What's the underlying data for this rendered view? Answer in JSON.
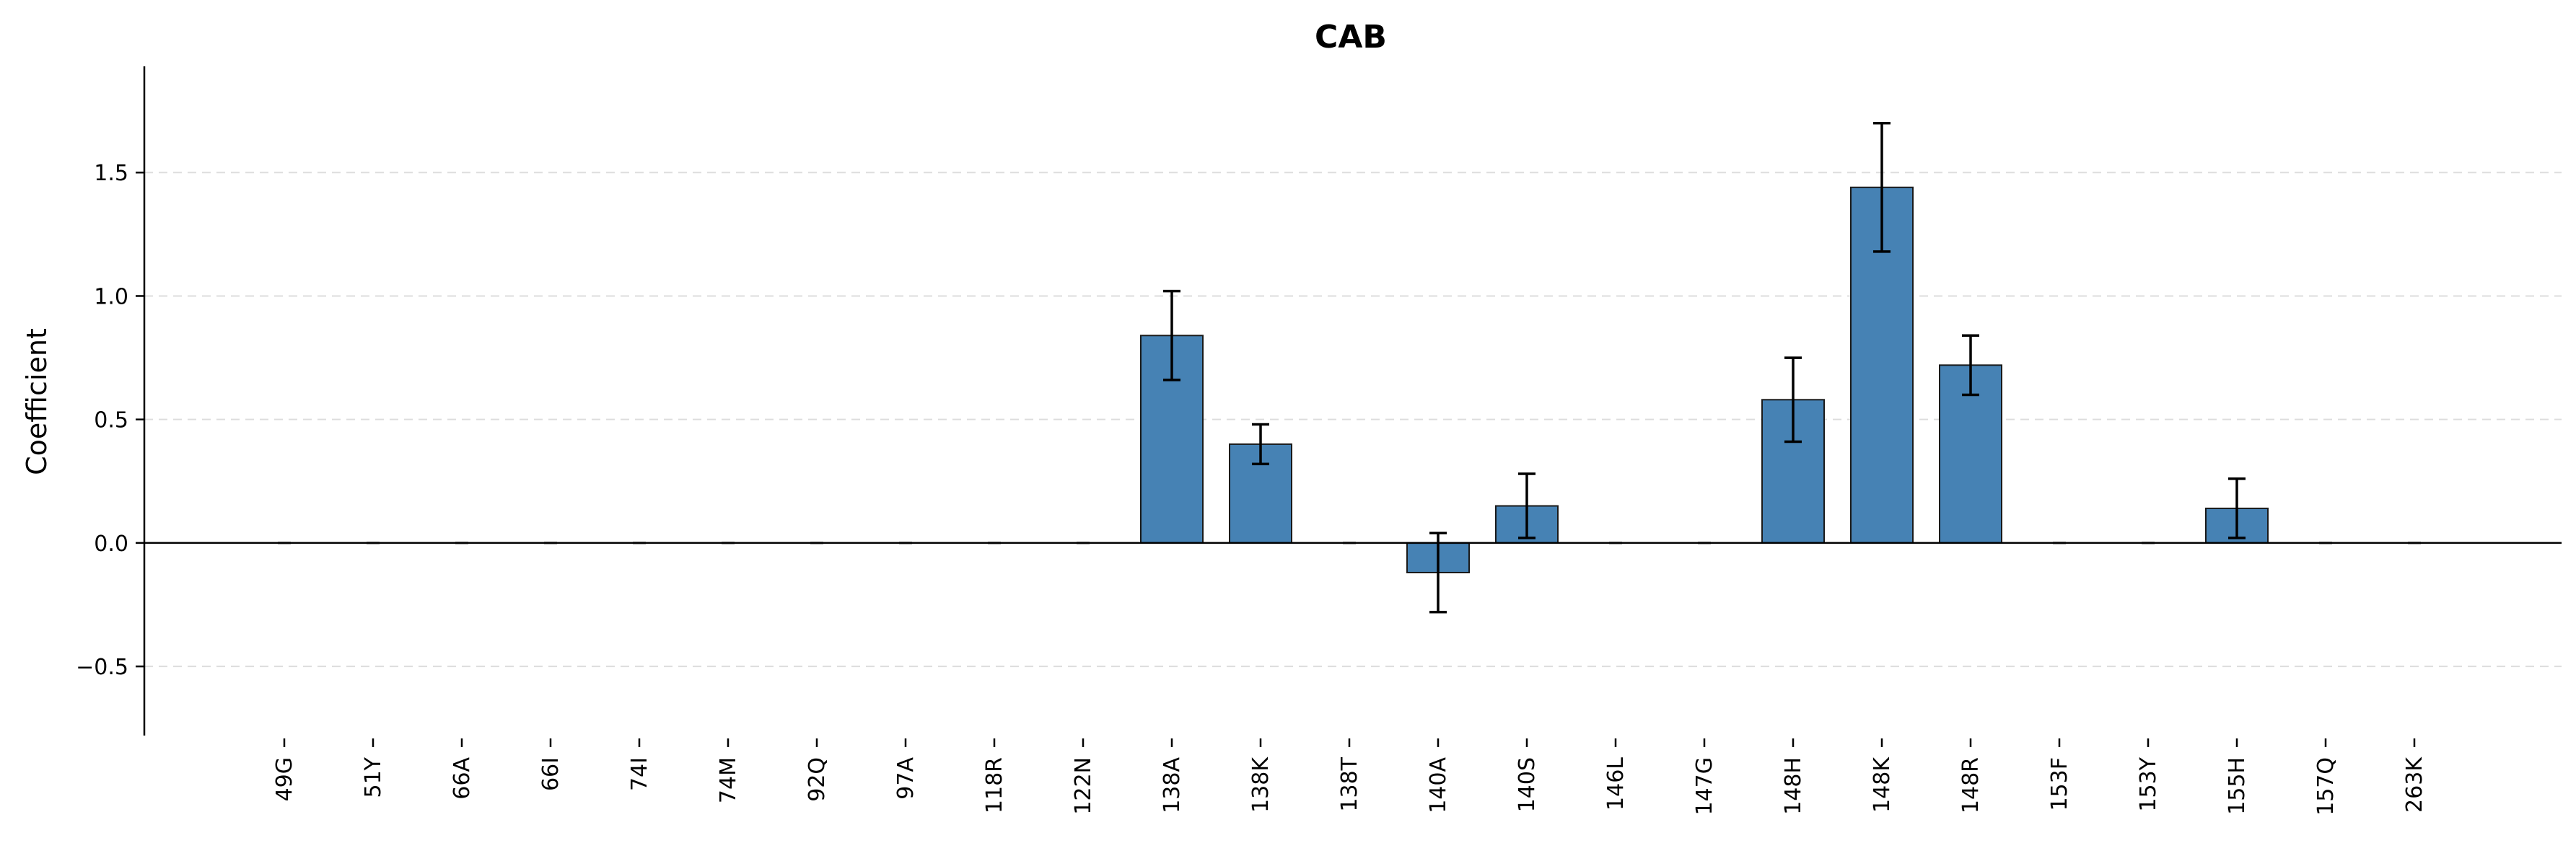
{
  "chart_data": {
    "type": "bar",
    "title": "CAB",
    "xlabel": "",
    "ylabel": "Coefficient",
    "ylim": [
      -0.78,
      1.93
    ],
    "yticks": [
      -0.5,
      0.0,
      0.5,
      1.0,
      1.5
    ],
    "ytick_labels": [
      "−0.5",
      "0.0",
      "0.5",
      "1.0",
      "1.5"
    ],
    "grid": "horizontal dashed",
    "bar_color": "#4682b4",
    "categories": [
      "49G",
      "51Y",
      "66A",
      "66I",
      "74I",
      "74M",
      "92Q",
      "97A",
      "118R",
      "122N",
      "138A",
      "138K",
      "138T",
      "140A",
      "140S",
      "146L",
      "147G",
      "148H",
      "148K",
      "148R",
      "153F",
      "153Y",
      "155H",
      "157Q",
      "263K"
    ],
    "values": [
      0,
      0,
      0,
      0,
      0,
      0,
      0,
      0,
      0,
      0,
      0.84,
      0.4,
      0,
      -0.12,
      0.15,
      0,
      0,
      0.58,
      1.44,
      0.72,
      0,
      0,
      0.14,
      0,
      0
    ],
    "errors": [
      0,
      0,
      0,
      0,
      0,
      0,
      0,
      0,
      0,
      0,
      0.18,
      0.08,
      0,
      0.16,
      0.13,
      0,
      0,
      0.17,
      0.26,
      0.12,
      0,
      0,
      0.12,
      0,
      0
    ]
  }
}
